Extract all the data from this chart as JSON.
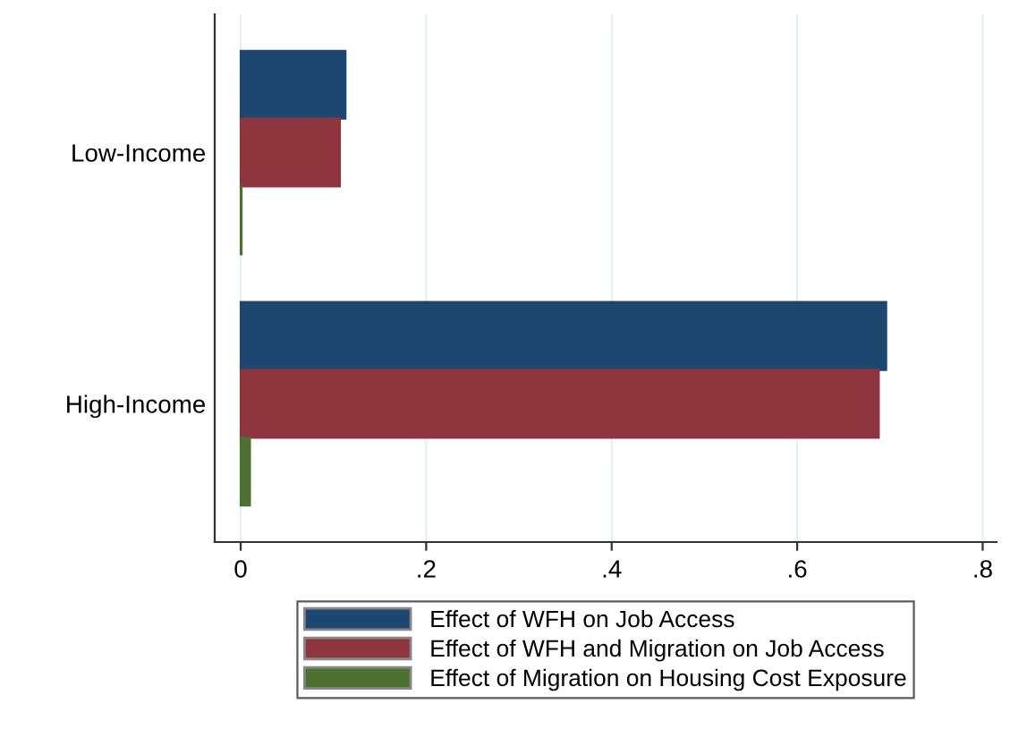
{
  "chart_data": {
    "type": "bar",
    "orientation": "horizontal",
    "categories": [
      "Low-Income",
      "High-Income"
    ],
    "series": [
      {
        "name": "Effect of WFH on Job Access",
        "color": "#1d476e",
        "values": [
          0.113,
          0.696
        ]
      },
      {
        "name": "Effect of WFH and Migration on Job Access",
        "color": "#8f353d",
        "values": [
          0.107,
          0.688
        ]
      },
      {
        "name": "Effect of Migration on Housing Cost Exposure",
        "color": "#4d7130",
        "values": [
          0.001,
          0.01
        ]
      }
    ],
    "xlim": [
      -0.028,
      0.815
    ],
    "xticks": [
      {
        "value": 0,
        "label": "0"
      },
      {
        "value": 0.2,
        "label": ".2"
      },
      {
        "value": 0.4,
        "label": ".4"
      },
      {
        "value": 0.6,
        "label": ".6"
      },
      {
        "value": 0.8,
        "label": ".8"
      }
    ],
    "grid": "x",
    "legend": "bottom"
  }
}
